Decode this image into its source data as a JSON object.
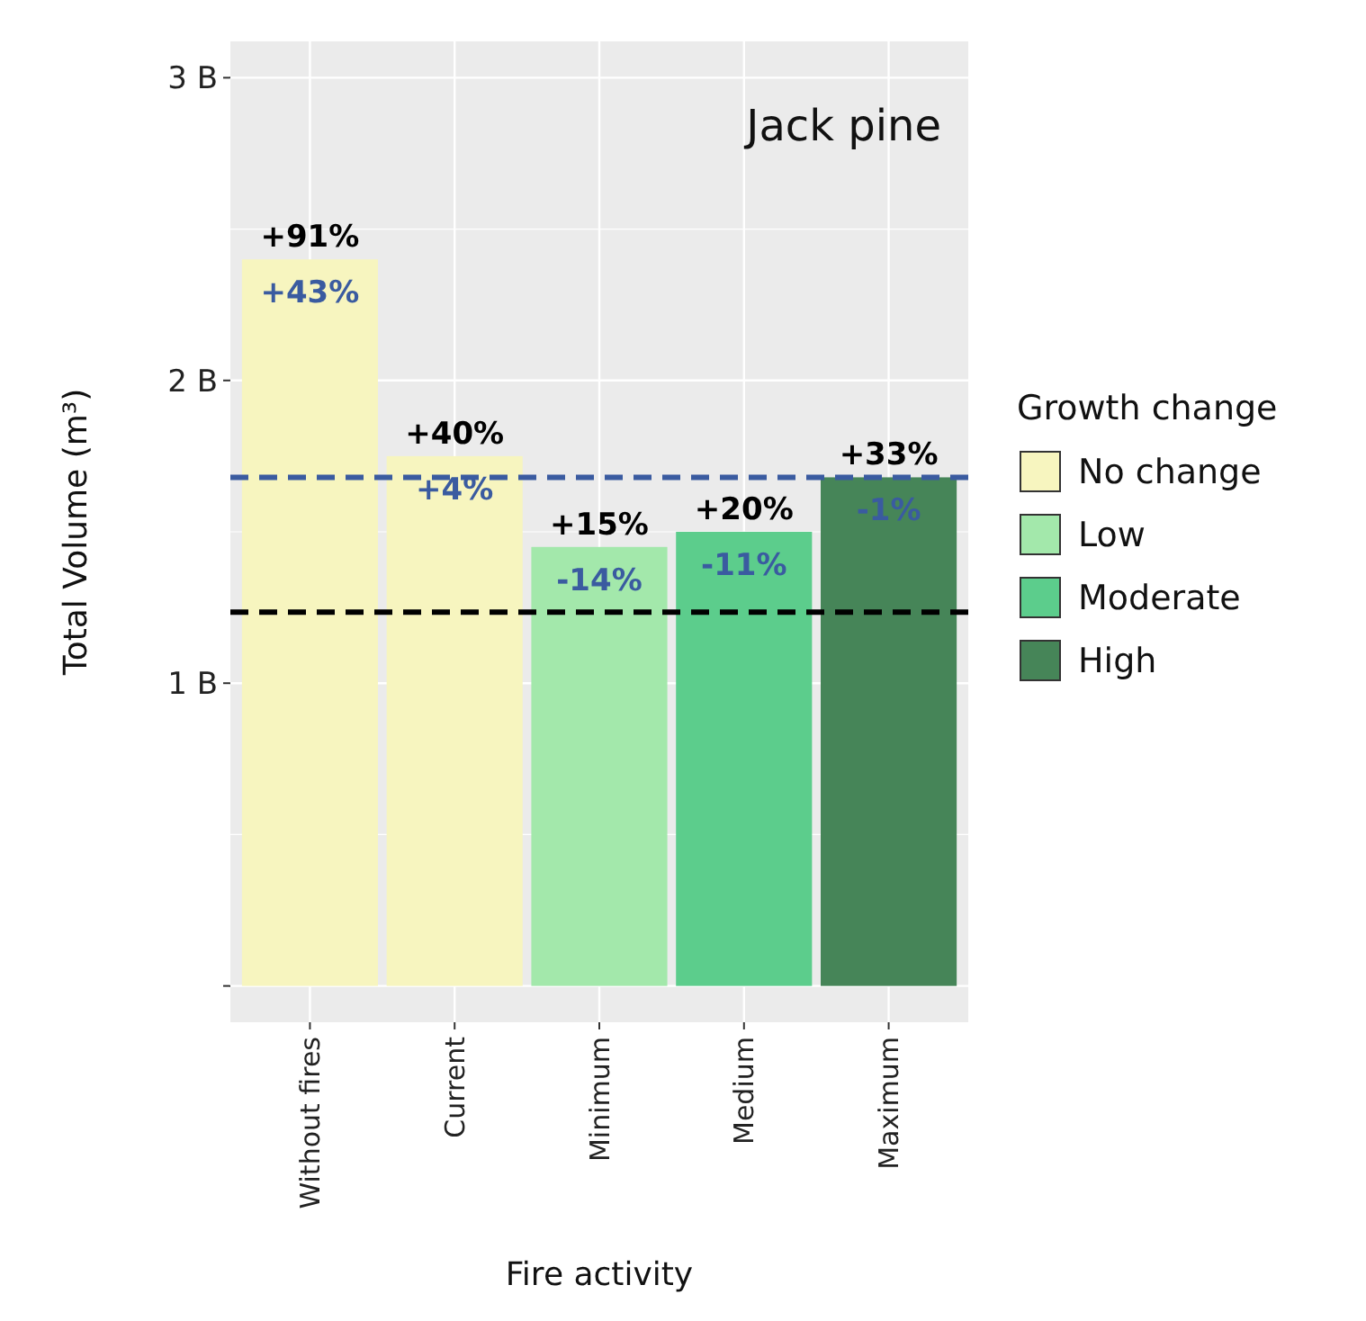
{
  "chart_data": {
    "type": "bar",
    "xlabel": "Fire activity",
    "ylabel": "Total Volume (m³)",
    "legend_title": "Growth change",
    "legend": "right",
    "grid": true,
    "categories": [
      "Without fires",
      "Current",
      "Minimum",
      "Medium",
      "Maximum"
    ],
    "series": [
      {
        "name": "No change",
        "color": "#f7f5bf",
        "values": [
          2.4,
          1.75,
          null,
          null,
          null
        ]
      },
      {
        "name": "Low",
        "color": "#a3e8ab",
        "values": [
          null,
          null,
          1.45,
          null,
          null
        ]
      },
      {
        "name": "Moderate",
        "color": "#5ccd8c",
        "values": [
          null,
          null,
          null,
          1.5,
          null
        ]
      },
      {
        "name": "High",
        "color": "#468558",
        "values": [
          null,
          null,
          null,
          null,
          1.68
        ]
      }
    ],
    "ylim": [
      -0.12,
      3.12
    ],
    "yticks": [
      {
        "value": 0,
        "label": null
      },
      {
        "value": 1,
        "label": "1 B"
      },
      {
        "value": 2,
        "label": "2 B"
      },
      {
        "value": 3,
        "label": "3 B"
      }
    ],
    "ref_lines": [
      {
        "axis": "y",
        "value": 1.68,
        "color": "#3a5ba0",
        "line_style": "dashed"
      },
      {
        "axis": "y",
        "value": 1.235,
        "color": "#000000",
        "line_style": "dashed"
      }
    ],
    "annotations": [
      "Jack pine",
      {
        "text": "+91%",
        "x": "Without fires",
        "y": 2.4
      },
      {
        "text": "+43%",
        "x": "Without fires",
        "y": 2.4
      },
      {
        "text": "+40%",
        "x": "Current",
        "y": 1.75
      },
      {
        "text": "+4%",
        "x": "Current",
        "y": 1.75
      },
      {
        "text": "+15%",
        "x": "Minimum",
        "y": 1.45
      },
      {
        "text": "-14%",
        "x": "Minimum",
        "y": 1.45
      },
      {
        "text": "+20%",
        "x": "Medium",
        "y": 1.5
      },
      {
        "text": "-11%",
        "x": "Medium",
        "y": 1.5
      },
      {
        "text": "+33%",
        "x": "Maximum",
        "y": 1.68
      },
      {
        "text": "-1%",
        "x": "Maximum",
        "y": 1.68
      }
    ]
  }
}
